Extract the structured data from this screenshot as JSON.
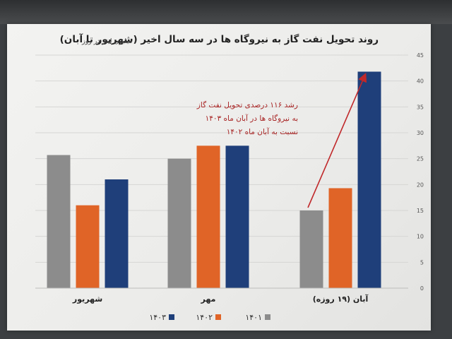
{
  "title": "روند تحویل نفت گاز به نیروگاه ها در سه سال اخیر (شهریور تا آبان)",
  "subtitle": "- میلیون لیتر در روز",
  "annotation": {
    "lines": [
      "رشد ۱۱۶ درصدی تحویل نفت گاز",
      "به نیروگاه ها در آبان ماه ۱۴۰۳",
      "نسبت به آبان ماه ۱۴۰۲"
    ]
  },
  "chart_data": {
    "type": "bar",
    "title": "روند تحویل نفت گاز به نیروگاه ها در سه سال اخیر (شهریور تا آبان)",
    "ylabel": "",
    "xlabel": "",
    "categories": [
      "شهریور",
      "مهر",
      "آبان (۱۹ روزه)"
    ],
    "series": [
      {
        "name": "۱۴۰۱",
        "color": "#8c8c8c",
        "values": [
          25.7,
          25.0,
          15.0
        ]
      },
      {
        "name": "۱۴۰۲",
        "color": "#e06427",
        "values": [
          16.0,
          27.5,
          19.3
        ]
      },
      {
        "name": "۱۴۰۳",
        "color": "#1f3f7a",
        "values": [
          21.0,
          27.5,
          41.8
        ]
      }
    ],
    "ylim": [
      0,
      45
    ],
    "yticks": [
      0,
      5,
      10,
      15,
      20,
      25,
      30,
      35,
      40,
      45
    ],
    "y_axis_side": "right",
    "category_order": "right-to-left",
    "grid": true,
    "legend": "bottom-center"
  }
}
